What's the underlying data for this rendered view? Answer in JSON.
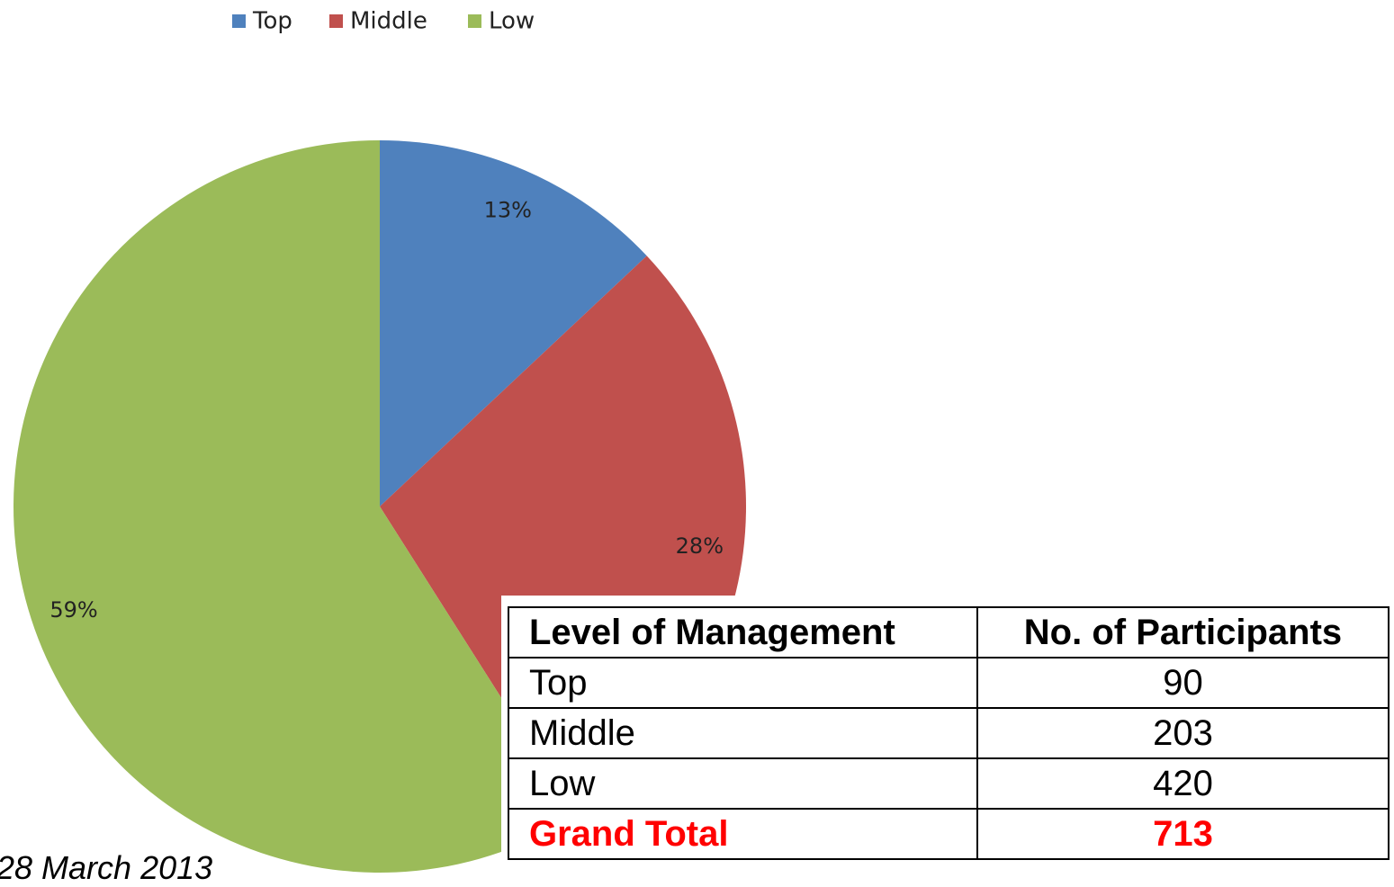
{
  "chart_data": {
    "type": "pie",
    "categories": [
      "Top",
      "Middle",
      "Low"
    ],
    "values": [
      13,
      28,
      59
    ],
    "colors": [
      "#4f81bd",
      "#c0504d",
      "#9bbb59"
    ],
    "legend": "top"
  },
  "table": {
    "header": [
      "Level of Management",
      "No. of Participants"
    ],
    "rows": [
      [
        "Top",
        "90"
      ],
      [
        "Middle",
        "203"
      ],
      [
        "Low",
        "420"
      ]
    ],
    "total": [
      "Grand Total",
      "713"
    ]
  },
  "footer": {
    "date": "28 March 2013"
  }
}
